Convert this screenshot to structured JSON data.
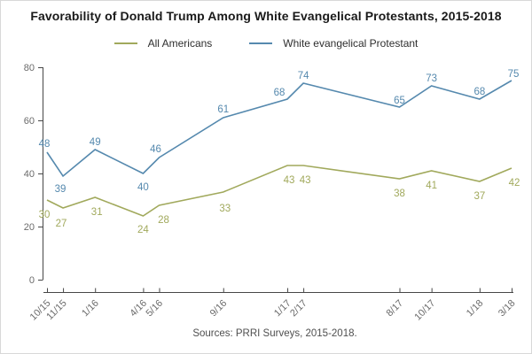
{
  "title": "Favorability of Donald Trump Among White Evangelical Protestants, 2015-2018",
  "source": "Sources: PRRI Surveys, 2015-2018.",
  "legend": {
    "items": [
      {
        "label": "All Americans",
        "color": "#a1a95c"
      },
      {
        "label": "White evangelical Protestant",
        "color": "#5589ae"
      }
    ]
  },
  "axis": {
    "line_color": "#474747",
    "tick_label_color": "#6b6b6b"
  },
  "chart_data": {
    "type": "line",
    "title": "Favorability of Donald Trump Among White Evangelical Protestants, 2015-2018",
    "xlabel": "",
    "ylabel": "",
    "categories": [
      "10/15",
      "11/15",
      "1/16",
      "4/16",
      "5/16",
      "9/16",
      "1/17",
      "2/17",
      "8/17",
      "10/17",
      "1/18",
      "3/18"
    ],
    "x_month_offsets": [
      0,
      1,
      3,
      6,
      7,
      11,
      15,
      16,
      22,
      24,
      27,
      29
    ],
    "ylim": [
      0,
      80
    ],
    "yticks": [
      0,
      20,
      40,
      60,
      80
    ],
    "grid": false,
    "legend_position": "top",
    "series": [
      {
        "name": "All Americans",
        "color": "#a1a95c",
        "values": [
          30,
          27,
          31,
          24,
          28,
          33,
          43,
          43,
          38,
          41,
          37,
          42
        ],
        "label_offsets": [
          [
            -3,
            20
          ],
          [
            -2,
            21
          ],
          [
            2,
            20
          ],
          [
            0,
            19
          ],
          [
            5,
            20
          ],
          [
            2,
            22
          ],
          [
            2,
            20
          ],
          [
            2,
            20
          ],
          [
            0,
            20
          ],
          [
            0,
            20
          ],
          [
            0,
            20
          ],
          [
            3,
            20
          ]
        ]
      },
      {
        "name": "White evangelical Protestant",
        "color": "#5589ae",
        "values": [
          48,
          39,
          49,
          40,
          46,
          61,
          68,
          74,
          65,
          73,
          68,
          75
        ],
        "label_offsets": [
          [
            -3,
            -6
          ],
          [
            -3,
            18
          ],
          [
            0,
            -5
          ],
          [
            0,
            19
          ],
          [
            -4,
            -6
          ],
          [
            0,
            -6
          ],
          [
            -9,
            -4
          ],
          [
            0,
            -5
          ],
          [
            0,
            -4
          ],
          [
            0,
            -5
          ],
          [
            0,
            -5
          ],
          [
            2,
            -4
          ]
        ]
      }
    ]
  }
}
